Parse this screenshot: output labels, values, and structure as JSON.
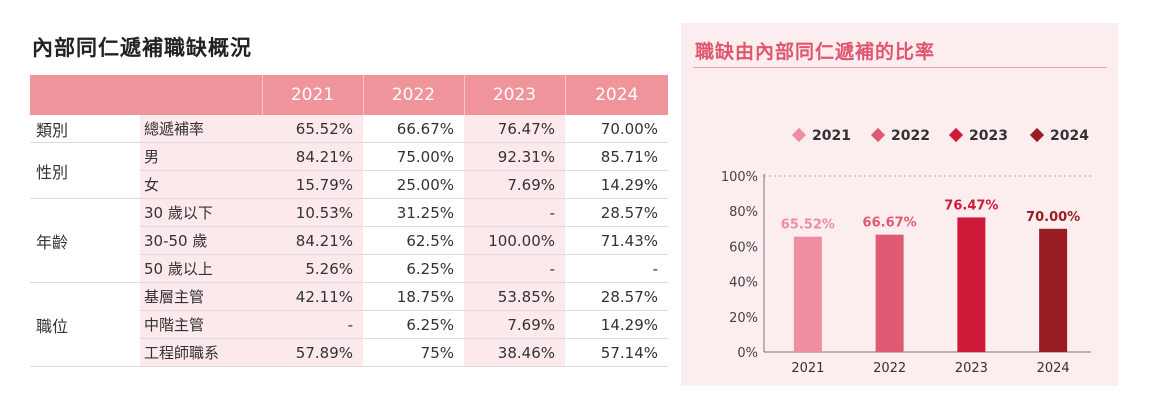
{
  "left_title": "內部同仁遞補職缺概況",
  "table": {
    "years": [
      "2021",
      "2022",
      "2023",
      "2024"
    ],
    "groups": [
      {
        "category": "類別",
        "rows": [
          {
            "label": "總遞補率",
            "values": [
              "65.52%",
              "66.67%",
              "76.47%",
              "70.00%"
            ]
          }
        ]
      },
      {
        "category": "性別",
        "rows": [
          {
            "label": "男",
            "values": [
              "84.21%",
              "75.00%",
              "92.31%",
              "85.71%"
            ]
          },
          {
            "label": "女",
            "values": [
              "15.79%",
              "25.00%",
              "7.69%",
              "14.29%"
            ]
          }
        ]
      },
      {
        "category": "年齡",
        "rows": [
          {
            "label": "30 歲以下",
            "values": [
              "10.53%",
              "31.25%",
              "-",
              "28.57%"
            ]
          },
          {
            "label": "30-50 歲",
            "values": [
              "84.21%",
              "62.5%",
              "100.00%",
              "71.43%"
            ]
          },
          {
            "label": "50 歲以上",
            "values": [
              "5.26%",
              "6.25%",
              "-",
              "-"
            ]
          }
        ]
      },
      {
        "category": "職位",
        "rows": [
          {
            "label": "基層主管",
            "values": [
              "42.11%",
              "18.75%",
              "53.85%",
              "28.57%"
            ]
          },
          {
            "label": "中階主管",
            "values": [
              "-",
              "6.25%",
              "7.69%",
              "14.29%"
            ]
          },
          {
            "label": "工程師職系",
            "values": [
              "57.89%",
              "75%",
              "38.46%",
              "57.14%"
            ]
          }
        ]
      }
    ]
  },
  "chart_data": {
    "type": "bar",
    "title": "職缺由內部同仁遞補的比率",
    "categories": [
      "2021",
      "2022",
      "2023",
      "2024"
    ],
    "values": [
      65.52,
      66.67,
      76.47,
      70.0
    ],
    "value_labels": [
      "65.52%",
      "66.67%",
      "76.47%",
      "70.00%"
    ],
    "colors": [
      "#ef8ea3",
      "#e05a73",
      "#d01a3a",
      "#981d25"
    ],
    "legend": [
      "2021",
      "2022",
      "2023",
      "2024"
    ],
    "legend_position": "top",
    "yticks": [
      "0%",
      "20%",
      "40%",
      "60%",
      "80%",
      "100%"
    ],
    "ylim": [
      0,
      100
    ],
    "grid": "dashed top line only"
  }
}
